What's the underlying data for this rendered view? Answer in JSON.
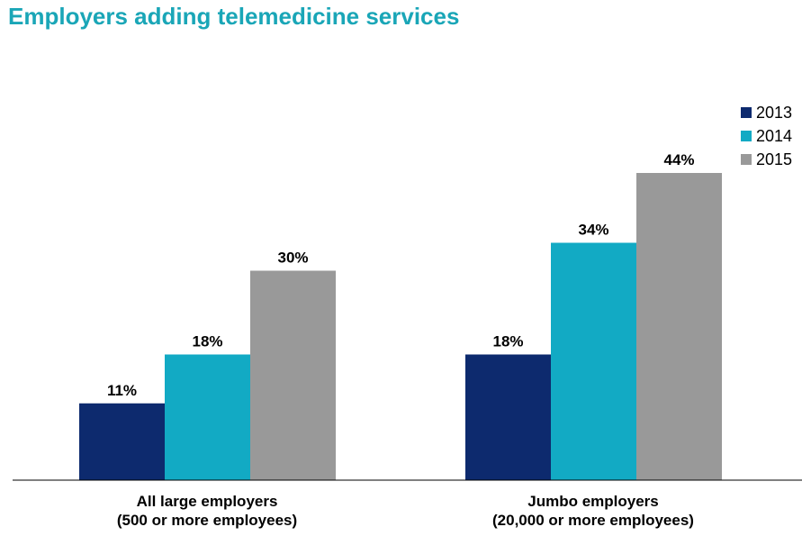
{
  "chart_data": {
    "type": "bar",
    "title": "Employers adding telemedicine services",
    "categories": [
      [
        "All large employers",
        "(500 or more employees)"
      ],
      [
        "Jumbo employers",
        "(20,000 or more employees)"
      ]
    ],
    "series": [
      {
        "name": "2013",
        "values": [
          11,
          18
        ],
        "color": "#0d2a6e"
      },
      {
        "name": "2014",
        "values": [
          18,
          34
        ],
        "color": "#12aac4"
      },
      {
        "name": "2015",
        "values": [
          30,
          44
        ],
        "color": "#999999"
      }
    ],
    "value_suffix": "%",
    "ylim": [
      0,
      50
    ],
    "grid": false,
    "legend_position": "top-right",
    "axis_color": "#000000"
  }
}
